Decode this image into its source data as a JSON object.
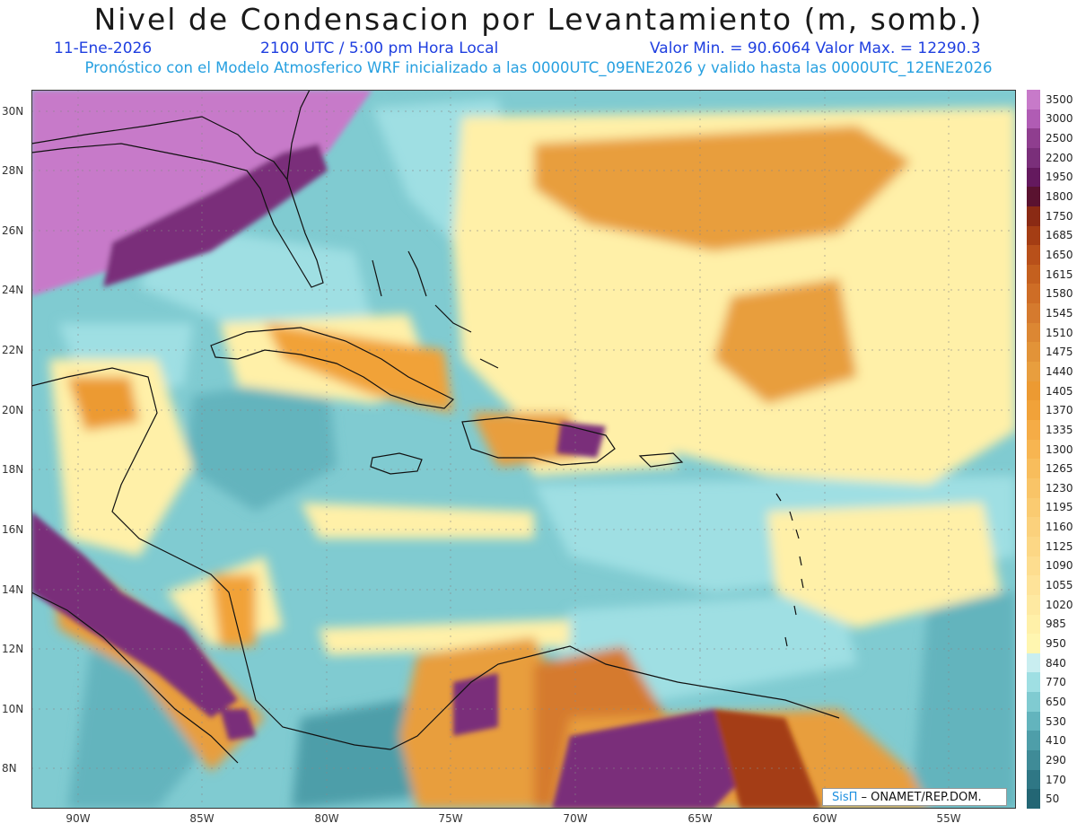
{
  "header": {
    "title": "Nivel de Condensacion por Levantamiento (m, somb.)",
    "date": "11-Ene-2026",
    "time": "2100 UTC / 5:00 pm Hora Local",
    "minmax": "Valor Min. = 90.6064   Valor Max. = 12290.3",
    "model_line": "Pronóstico con el Modelo Atmosferico WRF inicializado a las 0000UTC_09ENE2026 y valido hasta las  0000UTC_12ENE2026"
  },
  "axes": {
    "lon_ticks": [
      "90W",
      "85W",
      "80W",
      "75W",
      "70W",
      "65W",
      "60W",
      "55W"
    ],
    "lat_ticks": [
      "30N",
      "28N",
      "26N",
      "24N",
      "22N",
      "20N",
      "18N",
      "16N",
      "14N",
      "12N",
      "10N",
      "8N"
    ]
  },
  "legend": {
    "levels": [
      "3500",
      "3000",
      "2500",
      "2200",
      "1950",
      "1800",
      "1750",
      "1685",
      "1650",
      "1615",
      "1580",
      "1545",
      "1510",
      "1475",
      "1440",
      "1405",
      "1370",
      "1335",
      "1300",
      "1265",
      "1230",
      "1195",
      "1160",
      "1125",
      "1090",
      "1055",
      "1020",
      "985",
      "950",
      "840",
      "770",
      "650",
      "530",
      "410",
      "290",
      "170",
      "50"
    ],
    "colors": [
      "#c77ac9",
      "#b05cb4",
      "#8f3e8f",
      "#7a2f7a",
      "#64195e",
      "#5a1230",
      "#8a2a14",
      "#a43d14",
      "#b8501a",
      "#c4601f",
      "#ce6d26",
      "#d57a2e",
      "#dc8733",
      "#e29338",
      "#e89e3e",
      "#ec9a32",
      "#f1a239",
      "#f5ac46",
      "#f7b551",
      "#f8bd5c",
      "#f9c467",
      "#facb71",
      "#fbd17c",
      "#fcd785",
      "#fddd8f",
      "#fee399",
      "#fee9a1",
      "#fff0a8",
      "#fff6b0",
      "#c9eef0",
      "#9fdfe3",
      "#80cbd1",
      "#63b4bd",
      "#4e9ea9",
      "#3f8b97",
      "#2f7785",
      "#236674"
    ]
  },
  "credit": {
    "logo": "SisΠ",
    "text": " – ONAMET/REP.DOM."
  },
  "colors": {
    "deep_blue": "#236674",
    "teal": "#63b4bd",
    "light_teal": "#9fdfe3",
    "yellow": "#fff0a8",
    "orange": "#e89e3e",
    "brown": "#a43d14",
    "purple": "#7a2f7a",
    "lavender": "#c77ac9"
  }
}
